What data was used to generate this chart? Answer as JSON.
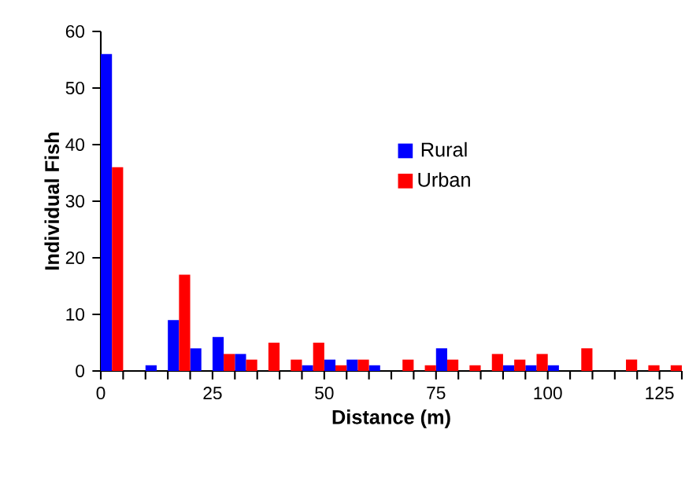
{
  "chart_data": {
    "type": "histogram",
    "xlabel": "Distance (m)",
    "ylabel": "Individual Fish",
    "bins": [
      0,
      5,
      10,
      15,
      20,
      25,
      30,
      35,
      40,
      45,
      50,
      55,
      60,
      65,
      70,
      75,
      80,
      85,
      90,
      95,
      100,
      105,
      110,
      115,
      120,
      125,
      130
    ],
    "series": [
      {
        "name": "Rural",
        "color": "#0000ff",
        "values": [
          56,
          0,
          1,
          9,
          4,
          6,
          3,
          0,
          0,
          1,
          2,
          2,
          1,
          0,
          0,
          4,
          0,
          0,
          1,
          1,
          1,
          0,
          0,
          0,
          0,
          0
        ]
      },
      {
        "name": "Urban",
        "color": "#ff0000",
        "values": [
          36,
          0,
          0,
          17,
          0,
          3,
          2,
          5,
          2,
          5,
          1,
          2,
          0,
          2,
          1,
          2,
          1,
          3,
          2,
          3,
          0,
          4,
          0,
          2,
          1,
          1
        ]
      }
    ],
    "xlim": [
      0,
      130
    ],
    "ylim": [
      0,
      60
    ],
    "xticks": [
      0,
      {
        "value": 5,
        "label": null
      },
      {
        "value": 10,
        "label": null
      },
      {
        "value": 15,
        "label": null
      },
      {
        "value": 20,
        "label": null
      },
      25,
      {
        "value": 30,
        "label": null
      },
      {
        "value": 35,
        "label": null
      },
      {
        "value": 40,
        "label": null
      },
      {
        "value": 45,
        "label": null
      },
      50,
      {
        "value": 55,
        "label": null
      },
      {
        "value": 60,
        "label": null
      },
      {
        "value": 65,
        "label": null
      },
      {
        "value": 70,
        "label": null
      },
      75,
      {
        "value": 80,
        "label": null
      },
      {
        "value": 85,
        "label": null
      },
      {
        "value": 90,
        "label": null
      },
      {
        "value": 95,
        "label": null
      },
      100,
      {
        "value": 105,
        "label": null
      },
      {
        "value": 110,
        "label": null
      },
      {
        "value": 115,
        "label": null
      },
      {
        "value": 120,
        "label": null
      },
      125,
      {
        "value": 130,
        "label": null
      }
    ],
    "yticks": [
      0,
      10,
      20,
      30,
      40,
      50,
      60
    ],
    "legend": "right",
    "grid": false
  }
}
